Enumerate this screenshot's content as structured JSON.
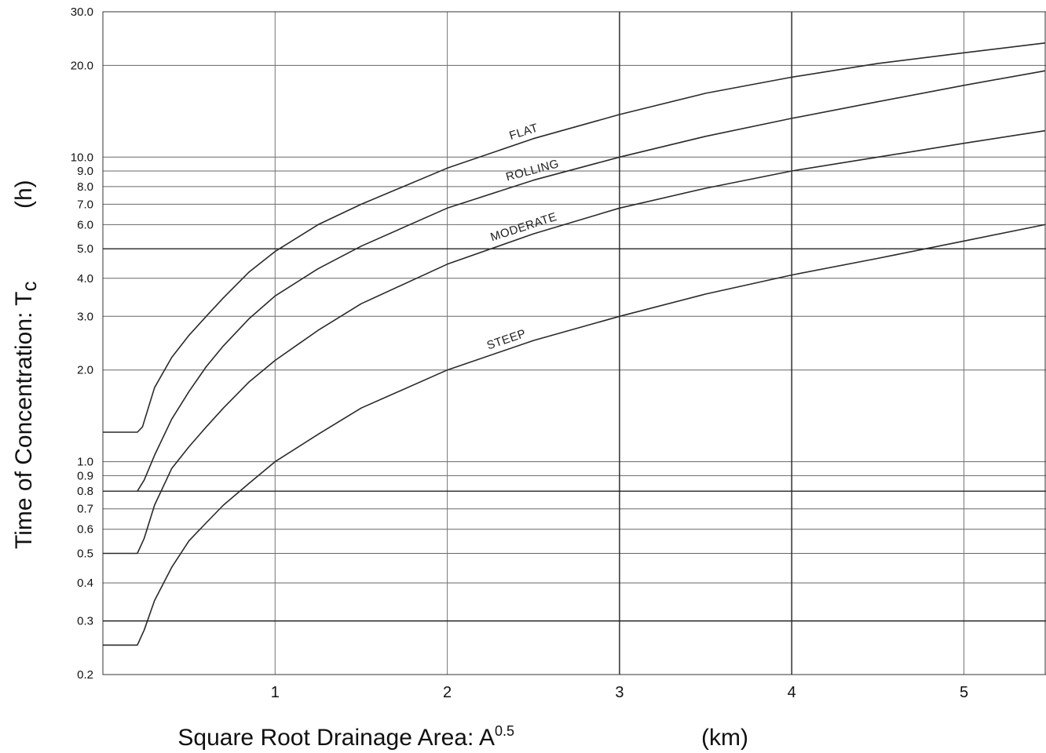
{
  "chart_data": {
    "type": "line",
    "title": "",
    "xlabel": "Square Root Drainage Area:  A",
    "xlabel_sup": "0.5",
    "xlabel_unit": "(km)",
    "ylabel": "Time of Concentration:  T",
    "ylabel_sub": "c",
    "ylabel_unit": "(h)",
    "x_scale": "linear",
    "y_scale": "log",
    "xlim": [
      0,
      5.47
    ],
    "ylim": [
      0.2,
      30
    ],
    "grid": true,
    "legend": "none",
    "x_ticks": [
      {
        "value": 1,
        "label": "1"
      },
      {
        "value": 2,
        "label": "2"
      },
      {
        "value": 3,
        "label": "3"
      },
      {
        "value": 4,
        "label": "4"
      },
      {
        "value": 5,
        "label": "5"
      }
    ],
    "y_ticks": [
      {
        "value": 0.2,
        "label": "0.2"
      },
      {
        "value": 0.3,
        "label": "0.3"
      },
      {
        "value": 0.4,
        "label": "0.4"
      },
      {
        "value": 0.5,
        "label": "0.5"
      },
      {
        "value": 0.6,
        "label": "0.6"
      },
      {
        "value": 0.7,
        "label": "0.7"
      },
      {
        "value": 0.8,
        "label": "0.8"
      },
      {
        "value": 0.9,
        "label": "0.9"
      },
      {
        "value": 1.0,
        "label": "1.0"
      },
      {
        "value": 2.0,
        "label": "2.0"
      },
      {
        "value": 3.0,
        "label": "3.0"
      },
      {
        "value": 4.0,
        "label": "4.0"
      },
      {
        "value": 5.0,
        "label": "5.0"
      },
      {
        "value": 6.0,
        "label": "6.0"
      },
      {
        "value": 7.0,
        "label": "7.0"
      },
      {
        "value": 8.0,
        "label": "8.0"
      },
      {
        "value": 9.0,
        "label": "9.0"
      },
      {
        "value": 10.0,
        "label": "10.0"
      },
      {
        "value": 20.0,
        "label": "20.0"
      },
      {
        "value": 30.0,
        "label": "30.0"
      }
    ],
    "series": [
      {
        "name": "FLAT",
        "x": [
          0,
          0.2,
          0.23,
          0.3,
          0.4,
          0.5,
          0.6,
          0.7,
          0.85,
          1.0,
          1.25,
          1.5,
          2.0,
          2.5,
          3.0,
          3.5,
          4.0,
          4.5,
          5.0,
          5.47
        ],
        "y": [
          1.25,
          1.25,
          1.3,
          1.75,
          2.2,
          2.6,
          3.0,
          3.45,
          4.2,
          4.9,
          6.0,
          7.0,
          9.2,
          11.5,
          13.8,
          16.2,
          18.3,
          20.3,
          22.0,
          23.7
        ]
      },
      {
        "name": "ROLLING",
        "x": [
          0.2,
          0.24,
          0.3,
          0.4,
          0.5,
          0.6,
          0.7,
          0.85,
          1.0,
          1.25,
          1.5,
          2.0,
          2.5,
          3.0,
          3.5,
          4.0,
          4.5,
          5.0,
          5.47
        ],
        "y": [
          0.8,
          0.87,
          1.05,
          1.38,
          1.7,
          2.05,
          2.4,
          2.95,
          3.5,
          4.3,
          5.1,
          6.8,
          8.4,
          10.0,
          11.7,
          13.4,
          15.2,
          17.2,
          19.2
        ]
      },
      {
        "name": "MODERATE",
        "x": [
          0,
          0.2,
          0.24,
          0.3,
          0.4,
          0.5,
          0.6,
          0.7,
          0.85,
          1.0,
          1.25,
          1.5,
          2.0,
          2.5,
          3.0,
          3.5,
          4.0,
          4.5,
          5.0,
          5.47
        ],
        "y": [
          0.5,
          0.5,
          0.56,
          0.72,
          0.95,
          1.12,
          1.3,
          1.5,
          1.83,
          2.15,
          2.7,
          3.3,
          4.45,
          5.6,
          6.8,
          7.9,
          9.0,
          10.0,
          11.1,
          12.2
        ]
      },
      {
        "name": "STEEP",
        "x": [
          0,
          0.2,
          0.24,
          0.3,
          0.4,
          0.5,
          0.6,
          0.7,
          0.85,
          1.0,
          1.25,
          1.5,
          2.0,
          2.5,
          3.0,
          3.5,
          4.0,
          4.5,
          5.0,
          5.47
        ],
        "y": [
          0.25,
          0.25,
          0.28,
          0.35,
          0.45,
          0.55,
          0.63,
          0.72,
          0.85,
          1.0,
          1.23,
          1.5,
          2.0,
          2.5,
          3.0,
          3.55,
          4.1,
          4.65,
          5.3,
          6.0
        ]
      }
    ]
  }
}
